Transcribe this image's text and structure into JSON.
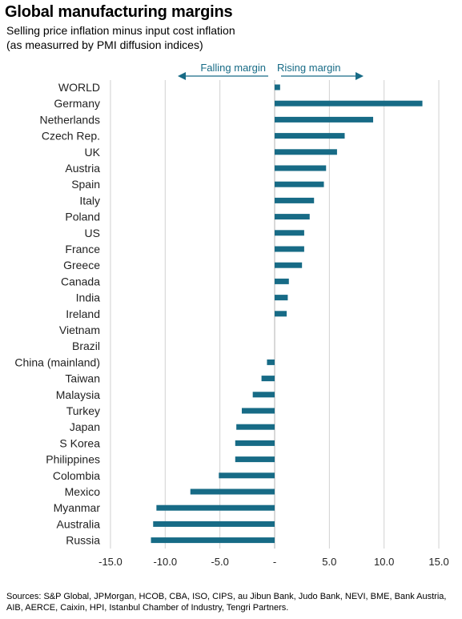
{
  "title": "Global manufacturing margins",
  "subtitle_line1": "Selling price inflation minus input cost inflation",
  "subtitle_line2": "(as measurred by PMI diffusion indices)",
  "annotations": {
    "falling": "Falling margin",
    "rising": "Rising margin"
  },
  "sources": "Sources: S&P Global, JPMorgan, HCOB, CBA, ISO, CIPS, au Jibun Bank, Judo Bank, NEVI, BME, Bank Austria, AIB, AERCE, Caixin, HPI, Istanbul Chamber of Industry, Tengri Partners.",
  "colors": {
    "bar": "#176b86",
    "grid": "#d0d0d0",
    "arrow": "#176b86"
  },
  "chart_data": {
    "type": "bar",
    "orientation": "horizontal",
    "categories": [
      "WORLD",
      "Germany",
      "Netherlands",
      "Czech Rep.",
      "UK",
      "Austria",
      "Spain",
      "Italy",
      "Poland",
      "US",
      "France",
      "Greece",
      "Canada",
      "India",
      "Ireland",
      "Vietnam",
      "Brazil",
      "China (mainland)",
      "Taiwan",
      "Malaysia",
      "Turkey",
      "Japan",
      "S Korea",
      "Philippines",
      "Colombia",
      "Mexico",
      "Myanmar",
      "Australia",
      "Russia"
    ],
    "values": [
      0.5,
      13.5,
      9.0,
      6.4,
      5.7,
      4.7,
      4.5,
      3.6,
      3.2,
      2.7,
      2.7,
      2.5,
      1.3,
      1.2,
      1.1,
      0,
      0,
      -0.7,
      -1.2,
      -2.0,
      -3.0,
      -3.5,
      -3.6,
      -3.6,
      -5.1,
      -7.7,
      -10.8,
      -11.1,
      -11.3
    ],
    "xlim": [
      -15,
      15
    ],
    "xticks": [
      -15,
      -10,
      -5,
      0,
      5,
      10,
      15
    ],
    "xtick_labels": [
      "-15.0",
      "-10.0",
      "-5.0",
      "-",
      "5.0",
      "10.0",
      "15.0"
    ],
    "grid": true
  }
}
